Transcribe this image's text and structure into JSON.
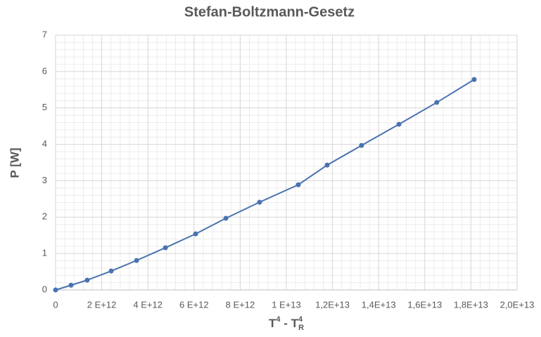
{
  "chart_data": {
    "type": "line",
    "title": "Stefan-Boltzmann-Gesetz",
    "ylabel": "P [W]",
    "xlabel": [
      "T",
      "4",
      " - T",
      "4",
      "R"
    ],
    "x": [
      0,
      670000000000.0,
      1370000000000.0,
      2410000000000.0,
      3510000000000.0,
      4760000000000.0,
      6070000000000.0,
      7380000000000.0,
      8840000000000.0,
      10520000000000.0,
      11770000000000.0,
      13260000000000.0,
      14880000000000.0,
      16520000000000.0,
      18140000000000.0
    ],
    "series": [
      {
        "name": "P",
        "color": "#4a72b0",
        "values": [
          0,
          0.13,
          0.27,
          0.52,
          0.81,
          1.16,
          1.54,
          1.97,
          2.41,
          2.89,
          3.43,
          3.97,
          4.55,
          5.15,
          5.78
        ]
      }
    ],
    "xlim": [
      0,
      20000000000000.0
    ],
    "ylim": [
      0,
      7
    ],
    "xticks": [
      0,
      {
        "value": 2000000000000.0,
        "label": "2 E+12"
      },
      {
        "value": 4000000000000.0,
        "label": "4 E+12"
      },
      {
        "value": 6000000000000.0,
        "label": "6 E+12"
      },
      {
        "value": 8000000000000.0,
        "label": "8 E+12"
      },
      {
        "value": 10000000000000.0,
        "label": "1 E+13"
      },
      {
        "value": 12000000000000.0,
        "label": "1,2E+13"
      },
      {
        "value": 14000000000000.0,
        "label": "1,4E+13"
      },
      {
        "value": 16000000000000.0,
        "label": "1,6E+13"
      },
      {
        "value": 18000000000000.0,
        "label": "1,8E+13"
      },
      {
        "value": 20000000000000.0,
        "label": "2,0E+13"
      }
    ],
    "yticks": [
      0,
      1,
      2,
      3,
      4,
      5,
      6,
      7
    ],
    "grid": true,
    "minor_grid": true,
    "legend": false
  }
}
